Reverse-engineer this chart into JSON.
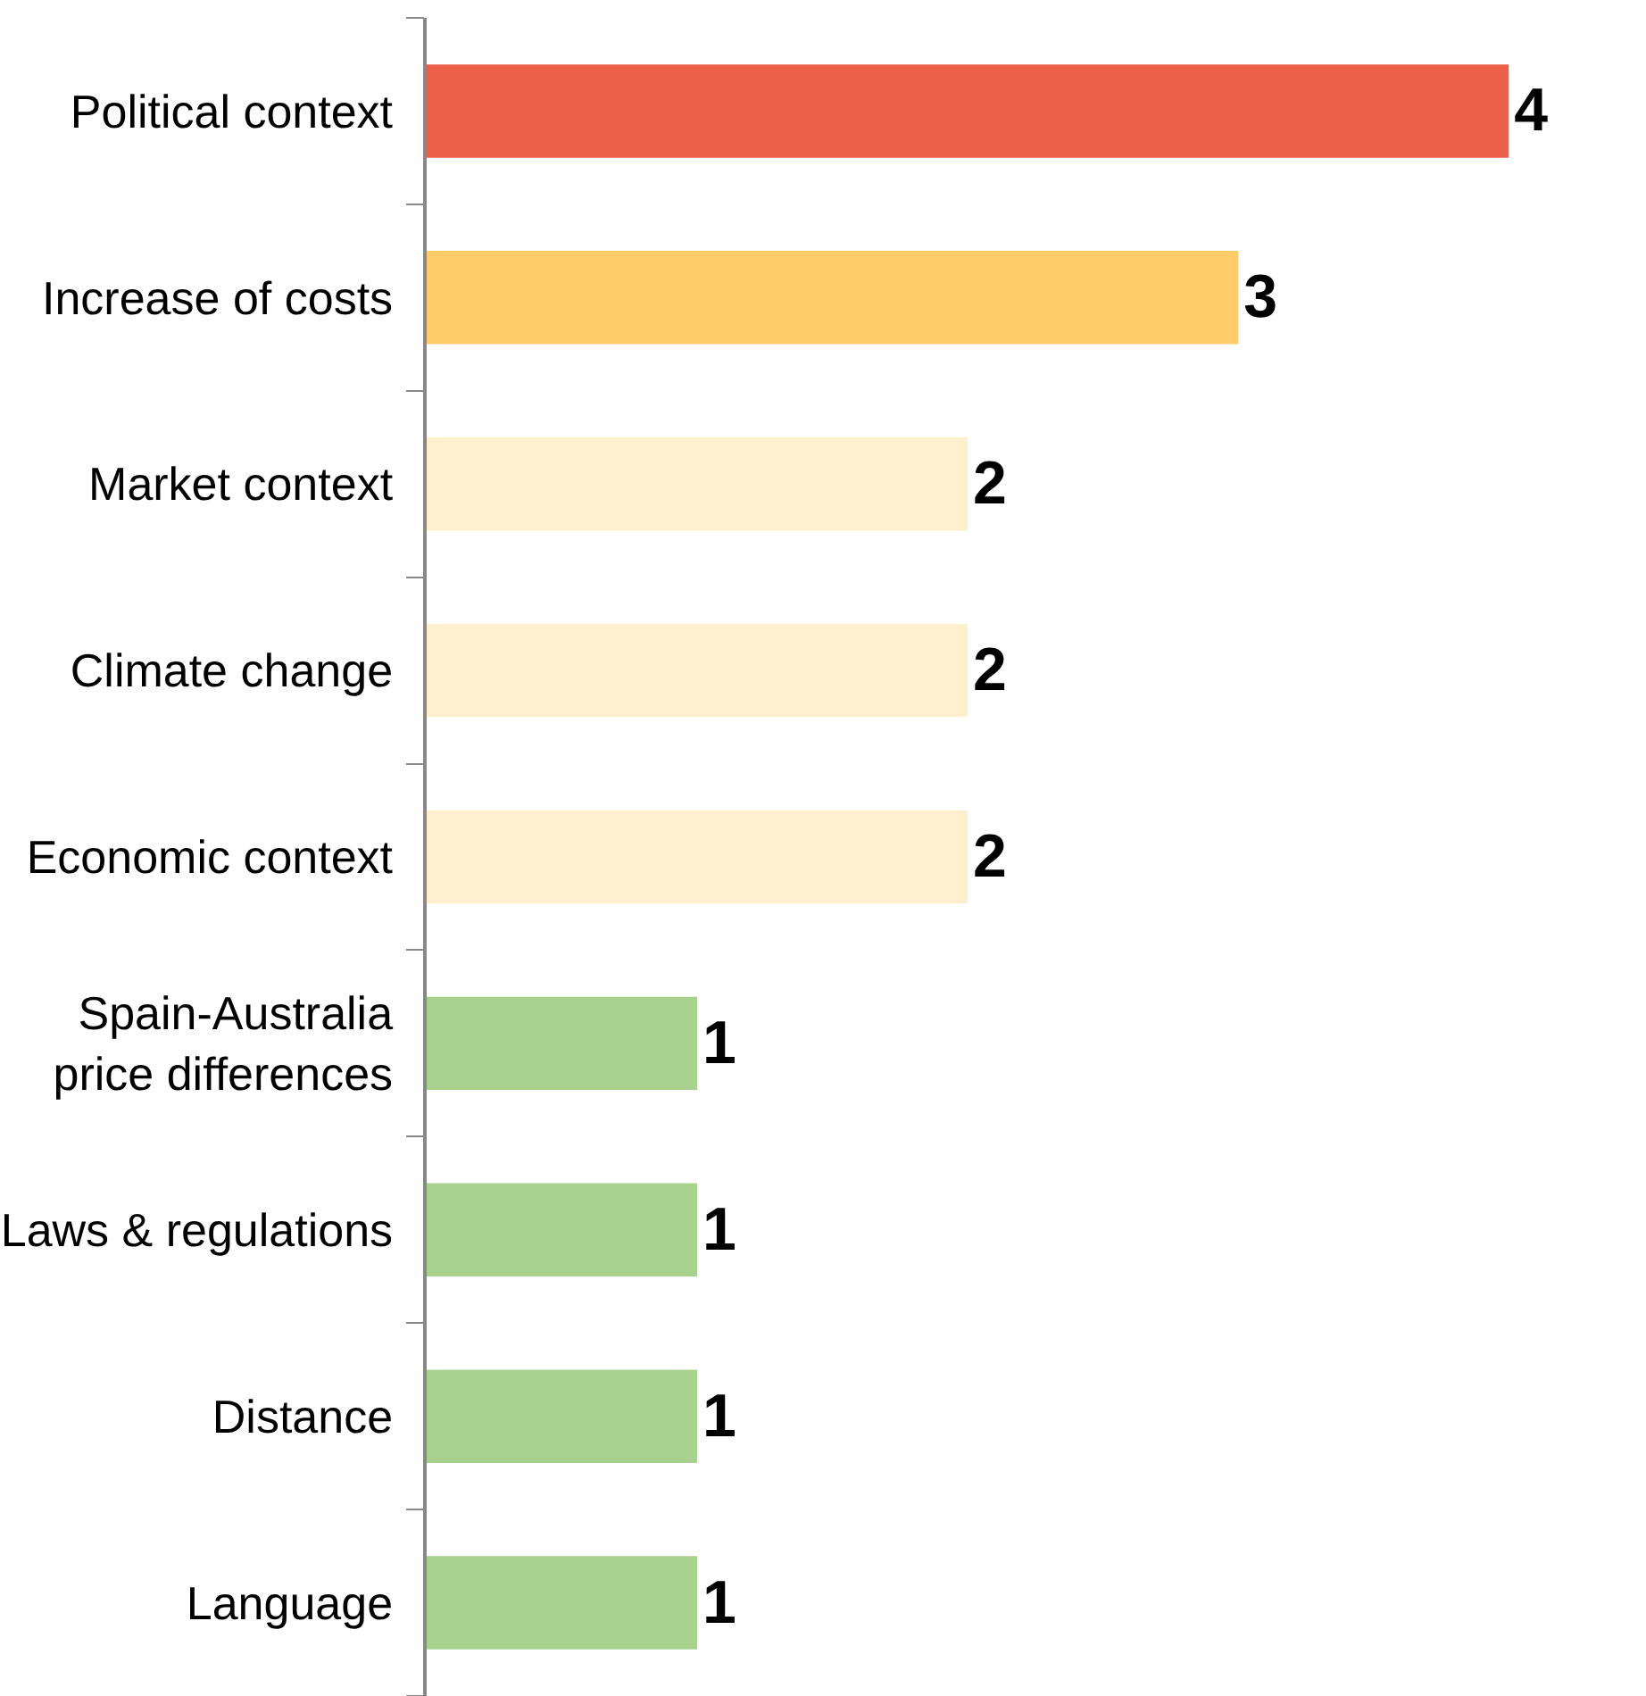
{
  "chart_data": {
    "type": "bar",
    "orientation": "horizontal",
    "categories": [
      "Political context",
      "Increase of costs",
      "Market context",
      "Climate change",
      "Economic context",
      "Spain-Australia\nprice differences",
      "Laws & regulations",
      "Distance",
      "Language"
    ],
    "values": [
      4,
      3,
      2,
      2,
      2,
      1,
      1,
      1,
      1
    ],
    "colors": [
      "#ec6049",
      "#ffcc6a",
      "#fff0cd",
      "#fff0cd",
      "#fff0cd",
      "#a9d18e",
      "#a9d18e",
      "#a9d18e",
      "#a9d18e"
    ],
    "data_labels": true,
    "tick_labels": "y"
  }
}
